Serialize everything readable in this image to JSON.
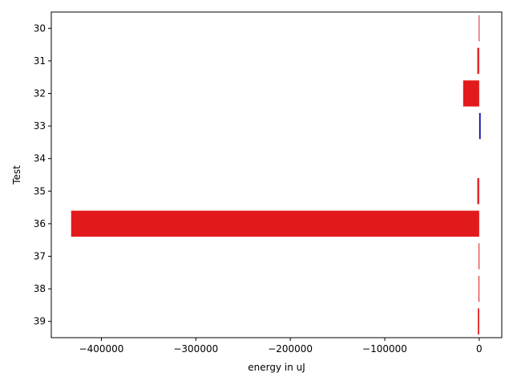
{
  "chart_data": {
    "type": "bar",
    "orientation": "horizontal",
    "title": "",
    "xlabel": "energy in uJ",
    "ylabel": "Test",
    "categories": [
      "30",
      "31",
      "32",
      "33",
      "34",
      "35",
      "36",
      "37",
      "38",
      "39"
    ],
    "values": [
      -500,
      -2000,
      -17000,
      1500,
      0,
      -2000,
      -432000,
      -600,
      -700,
      -1500
    ],
    "bar_colors": [
      "#e31a1c",
      "#e31a1c",
      "#e31a1c",
      "#0000aa",
      "#e31a1c",
      "#e31a1c",
      "#e31a1c",
      "#e31a1c",
      "#e31a1c",
      "#e31a1c"
    ],
    "xlim": [
      -453000,
      23900
    ],
    "xticks": [
      -400000,
      -300000,
      -200000,
      -100000,
      0
    ],
    "xtick_labels": [
      "−400000",
      "−300000",
      "−200000",
      "−100000",
      "0"
    ],
    "grid": false,
    "legend": "none",
    "colors": {
      "negative": "#e31a1c",
      "positive": "#0000aa",
      "axis": "#000000",
      "background": "#ffffff"
    }
  }
}
